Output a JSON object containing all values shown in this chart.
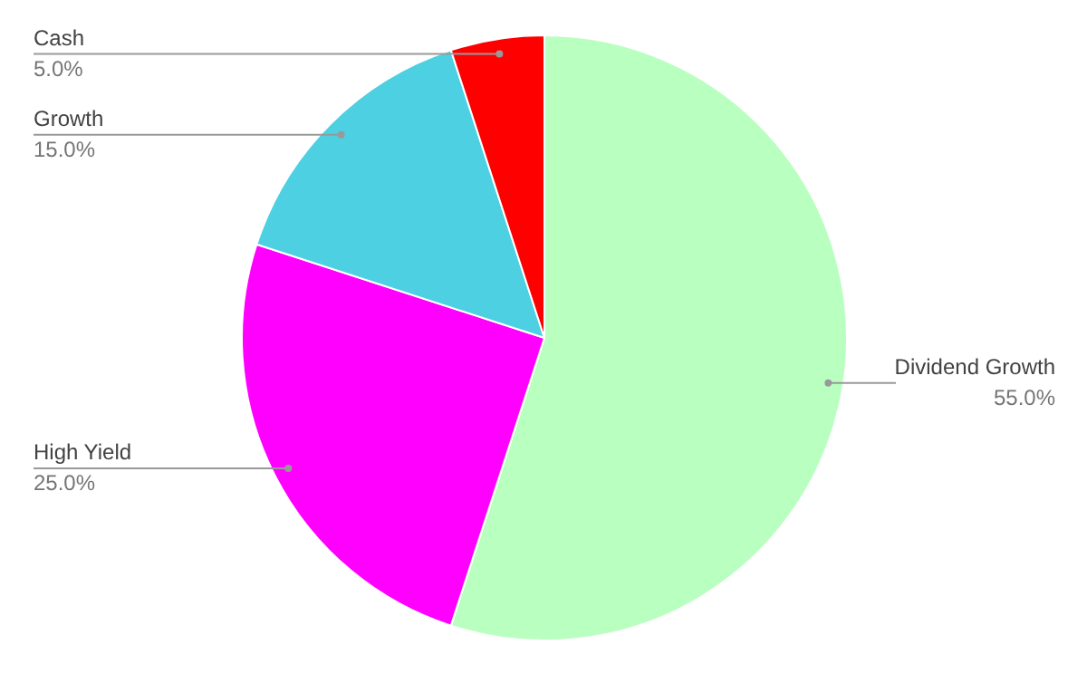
{
  "chart_data": {
    "type": "pie",
    "categories": [
      "Dividend Growth",
      "High Yield",
      "Growth",
      "Cash"
    ],
    "values": [
      55,
      25,
      15,
      5
    ],
    "colors": [
      "#b9ffc0",
      "#ff00ff",
      "#4dd0e1",
      "#ff0000"
    ],
    "value_labels": [
      "55.0%",
      "25.0%",
      "15.0%",
      "5.0%"
    ]
  }
}
